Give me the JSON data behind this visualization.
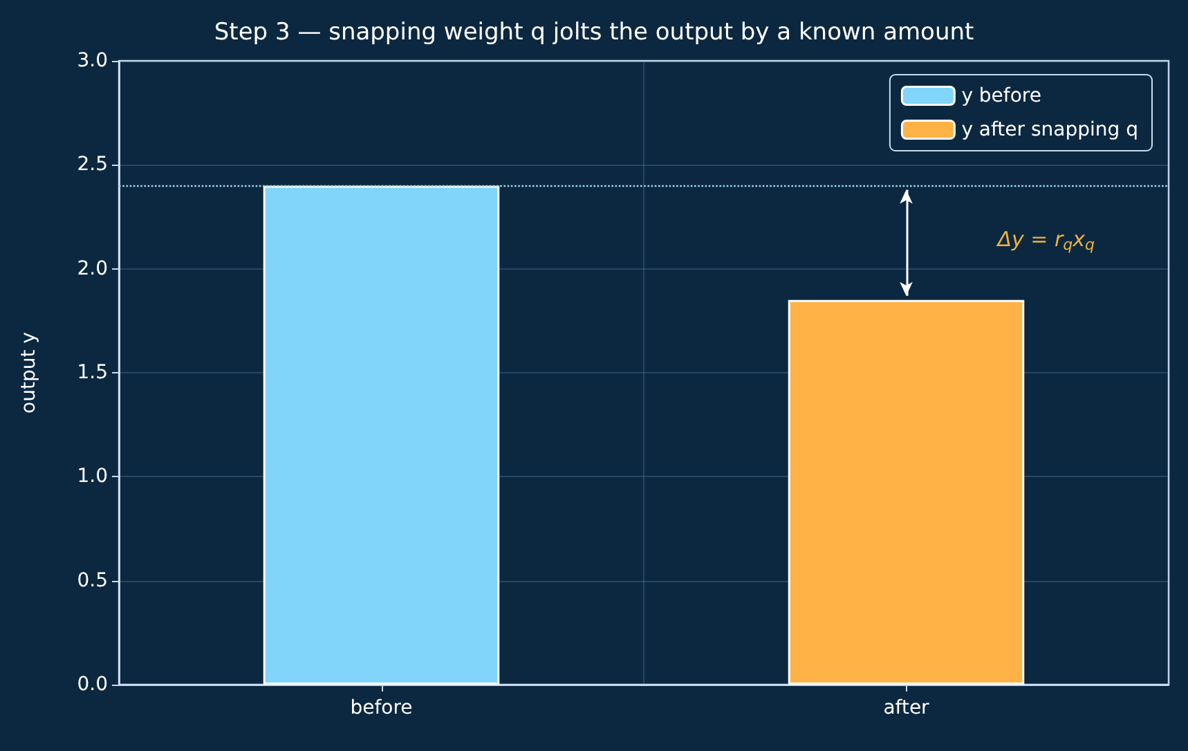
{
  "chart_data": {
    "type": "bar",
    "title": "Step 3 — snapping weight q jolts the output by a known amount",
    "ylabel": "output y",
    "categories": [
      "before",
      "after"
    ],
    "series": [
      {
        "name": "y before",
        "color": "#81d4fa",
        "values": [
          2.4,
          null
        ]
      },
      {
        "name": "y after snapping q",
        "color": "#ffb347",
        "values": [
          null,
          1.85
        ]
      }
    ],
    "ylim": [
      0,
      3
    ],
    "yticks": [
      {
        "value": 0,
        "label": "0.0"
      },
      0.5,
      {
        "value": 1,
        "label": "1.0"
      },
      1.5,
      {
        "value": 2,
        "label": "2.0"
      },
      2.5,
      {
        "value": 3,
        "label": "3.0"
      }
    ],
    "ref_lines": [
      {
        "axis": "y",
        "value": 2.4,
        "color": "#9fd8ef",
        "line_style": "dotted"
      }
    ],
    "annotations": [
      "Δy = r$_{q}$x$_{q}$"
    ],
    "grid": true,
    "legend": "top right"
  }
}
